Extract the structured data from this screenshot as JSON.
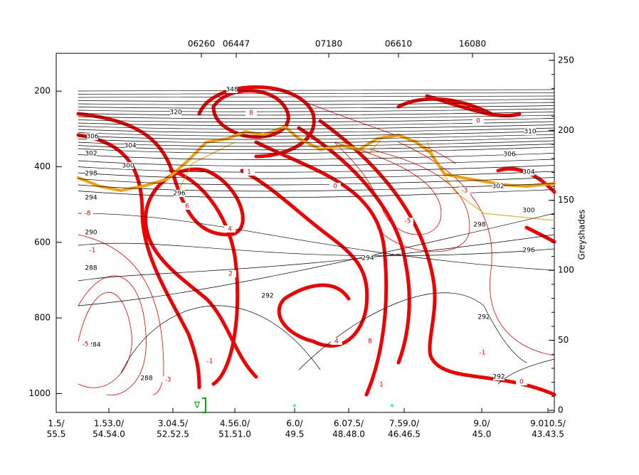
{
  "chart_data": {
    "type": "contour-section",
    "ylim": [
      100,
      1050
    ],
    "yticks": [
      200,
      400,
      600,
      800,
      1000
    ],
    "y2lim": [
      -1.5,
      255
    ],
    "y2ticks": [
      0,
      50,
      100,
      150,
      200,
      250
    ],
    "y2label": "Greyshades",
    "stations": [
      "06260",
      "06447",
      "07180",
      "06610",
      "16080"
    ],
    "bottom_labels": [
      {
        "top": "1.5/",
        "bottom": "55.5"
      },
      {
        "top": "1.53.0/",
        "bottom": "54.54.0"
      },
      {
        "top": "3.04.5/",
        "bottom": "52.52.5"
      },
      {
        "top": "4.56.0/",
        "bottom": "51.51.0"
      },
      {
        "top": "6.0/",
        "bottom": "49.5"
      },
      {
        "top": "6.07.5/",
        "bottom": "48.48.0"
      },
      {
        "top": "7.59.0/",
        "bottom": "46.46.5"
      },
      {
        "top": "9.0/",
        "bottom": "45.0"
      },
      {
        "top": "9.010.5/",
        "bottom": "43.43.5"
      }
    ],
    "symbols": [
      "∇",
      "*",
      "*"
    ],
    "contour_labels": [
      "348",
      "320",
      "306",
      "302",
      "304",
      "300",
      "298",
      "296",
      "294",
      "290",
      "288",
      "292",
      "284",
      "288",
      "310",
      "306",
      "304",
      "302",
      "300",
      "298",
      "296",
      "294",
      "292",
      "292",
      "6",
      "8",
      "4",
      "2",
      "0",
      "1",
      "4",
      "8",
      "1",
      "0",
      "-1",
      "0",
      "-5",
      "-3",
      "-5",
      "-3",
      "-1",
      "-8",
      "-1"
    ]
  }
}
